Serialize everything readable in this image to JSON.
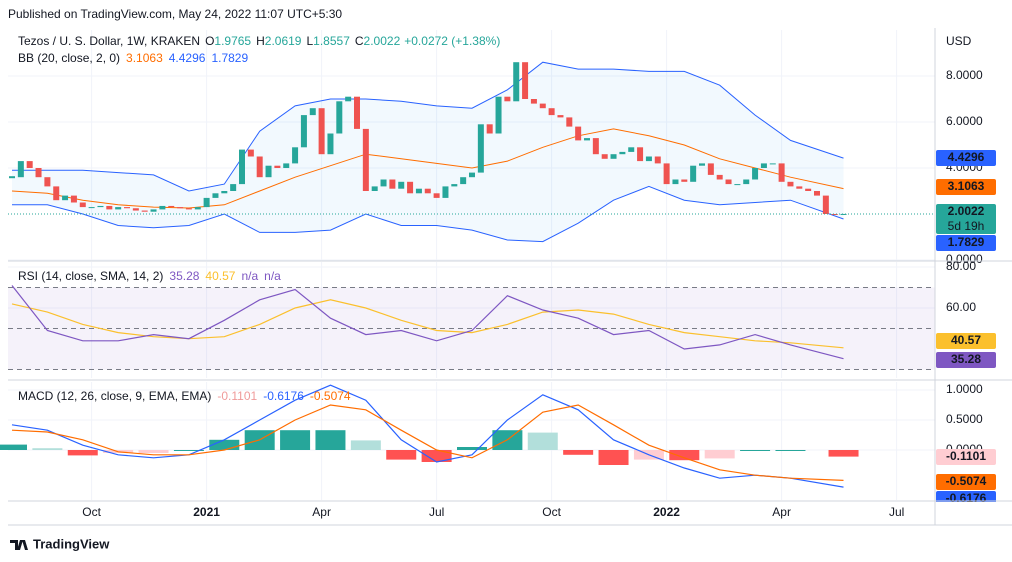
{
  "header": {
    "published": "Published on TradingView.com, May 24, 2022 11:07 UTC+5:30",
    "brand": "TradingView"
  },
  "chart_data": [
    {
      "type": "candlestick",
      "title": "Tezos / U. S. Dollar, 1W, KRAKEN",
      "unit": "USD",
      "ohlc": [
        {
          "label": "O",
          "value": 1.9765
        },
        {
          "label": "H",
          "value": 2.0619
        },
        {
          "label": "L",
          "value": 1.8557
        },
        {
          "label": "C",
          "value": 2.0022
        }
      ],
      "change": "+0.0272 (+1.38%)",
      "countdown": "5d 19h",
      "up_color": "#26a69a",
      "down_color": "#ef5350",
      "closes": [
        3.6,
        4.3,
        4.0,
        3.6,
        3.2,
        2.6,
        2.8,
        2.5,
        2.3,
        2.3,
        2.35,
        2.2,
        2.3,
        2.25,
        2.15,
        2.1,
        2.2,
        2.35,
        2.3,
        2.25,
        2.2,
        2.3,
        2.7,
        2.9,
        3.0,
        3.3,
        4.8,
        4.5,
        3.6,
        4.1,
        4.0,
        4.2,
        4.9,
        6.3,
        6.6,
        4.6,
        5.5,
        6.9,
        7.1,
        5.7,
        3.0,
        3.2,
        3.5,
        3.1,
        3.4,
        2.9,
        3.1,
        2.9,
        2.7,
        3.2,
        3.3,
        3.6,
        3.8,
        5.9,
        5.5,
        7.1,
        6.9,
        8.6,
        7.0,
        6.8,
        6.6,
        6.3,
        6.2,
        5.8,
        5.2,
        5.3,
        4.6,
        4.4,
        4.6,
        4.7,
        4.9,
        4.3,
        4.5,
        4.2,
        3.3,
        3.5,
        3.4,
        4.1,
        4.2,
        3.7,
        3.5,
        3.3,
        3.3,
        3.5,
        4.0,
        4.2,
        4.2,
        3.4,
        3.2,
        3.1,
        3.0,
        2.8,
        2.0,
        1.9765,
        2.0022
      ],
      "bb": {
        "label": "BB (20, close, 2, 0)",
        "x": [
          0,
          4,
          8,
          12,
          16,
          20,
          24,
          28,
          32,
          36,
          40,
          44,
          48,
          52,
          56,
          60,
          64,
          68,
          72,
          76,
          80,
          84,
          88,
          94
        ],
        "series": [
          {
            "color": "#ff6d00",
            "last": 3.1063,
            "values": [
              3.0,
              2.9,
              2.6,
              2.4,
              2.3,
              2.26,
              2.4,
              3.0,
              3.6,
              4.1,
              4.6,
              4.4,
              4.2,
              4.0,
              4.3,
              4.9,
              5.4,
              5.7,
              5.4,
              5.0,
              4.4,
              4.0,
              3.6,
              3.1063
            ]
          },
          {
            "color": "#2962ff",
            "last": 4.4296,
            "values": [
              3.9,
              3.9,
              3.9,
              3.8,
              3.7,
              3.0,
              3.3,
              5.6,
              6.7,
              7.0,
              7.0,
              6.9,
              6.7,
              6.6,
              7.4,
              8.6,
              8.3,
              8.3,
              8.2,
              8.2,
              7.6,
              6.3,
              5.2,
              4.4296
            ]
          },
          {
            "color": "#2962ff",
            "last": 1.7829,
            "values": [
              2.4,
              2.4,
              2.0,
              1.5,
              1.4,
              1.5,
              2.0,
              1.2,
              1.2,
              1.3,
              2.0,
              1.5,
              1.5,
              1.3,
              0.87,
              0.8,
              1.6,
              2.6,
              3.2,
              2.6,
              2.4,
              2.5,
              2.6,
              1.7829
            ]
          }
        ]
      },
      "xlim": [
        0,
        104
      ],
      "xticks": [
        {
          "value": 9,
          "label": "Oct"
        },
        {
          "value": 22,
          "label": "2021"
        },
        {
          "value": 35,
          "label": "Apr"
        },
        {
          "value": 48,
          "label": "Jul"
        },
        {
          "value": 61,
          "label": "Oct"
        },
        {
          "value": 74,
          "label": "2022"
        },
        {
          "value": 87,
          "label": "Apr"
        },
        {
          "value": 100,
          "label": "Jul"
        }
      ],
      "ylim": [
        0,
        10
      ],
      "yticks": [
        {
          "value": 0,
          "label": "0.0000"
        },
        {
          "value": 4,
          "label": "4.0000"
        },
        {
          "value": 6,
          "label": "6.0000"
        },
        {
          "value": 8,
          "label": "8.0000"
        }
      ]
    },
    {
      "type": "line",
      "title": "RSI (14, close, SMA, 14, 2)",
      "x": [
        0,
        4,
        8,
        12,
        16,
        20,
        24,
        28,
        32,
        36,
        40,
        44,
        48,
        52,
        56,
        60,
        64,
        68,
        72,
        76,
        80,
        84,
        88,
        94
      ],
      "series": [
        {
          "color": "#7e57c2",
          "last": 35.28,
          "values": [
            71,
            49,
            44,
            44,
            47,
            45,
            54,
            64,
            69,
            55,
            47,
            49,
            44,
            49,
            66,
            59,
            55,
            47,
            49,
            40,
            42,
            47,
            42,
            35.28
          ]
        },
        {
          "color": "#fbc02d",
          "last": 40.57,
          "values": [
            62,
            58,
            52,
            48,
            46,
            45,
            46,
            52,
            60,
            64,
            60,
            54,
            49,
            48,
            52,
            58,
            59,
            57,
            52,
            48,
            46,
            44,
            43,
            40.57
          ]
        }
      ],
      "extra": [
        "n/a",
        "n/a"
      ],
      "bands": [
        30,
        70
      ],
      "midline": 50,
      "ylim": [
        25.85,
        82.44
      ],
      "yticks": [
        {
          "value": 80,
          "label": "80.00"
        },
        {
          "value": 60,
          "label": "60.00"
        }
      ]
    },
    {
      "type": "macd",
      "title": "MACD (12, 26, close, 9, EMA, EMA)",
      "x": [
        0,
        4,
        8,
        12,
        16,
        20,
        24,
        28,
        32,
        36,
        40,
        44,
        48,
        52,
        56,
        60,
        64,
        68,
        72,
        76,
        80,
        84,
        88,
        94
      ],
      "histogram": {
        "last": -0.1101,
        "values": [
          0.09,
          0.03,
          -0.09,
          -0.05,
          -0.05,
          0,
          0.17,
          0.33,
          0.33,
          0.33,
          0.16,
          -0.16,
          -0.2,
          0.05,
          0.33,
          0.29,
          -0.08,
          -0.25,
          -0.16,
          -0.17,
          -0.14,
          0,
          0,
          -0.1101
        ]
      },
      "series": [
        {
          "color": "#2962ff",
          "last": -0.6176,
          "values": [
            0.42,
            0.33,
            0.08,
            -0.08,
            -0.13,
            -0.08,
            0.17,
            0.5,
            0.83,
            1.08,
            0.83,
            0.17,
            -0.2,
            -0.08,
            0.5,
            0.92,
            0.67,
            0.17,
            -0.08,
            -0.3,
            -0.47,
            -0.42,
            -0.47,
            -0.6176
          ]
        },
        {
          "color": "#ff6d00",
          "last": -0.5074,
          "values": [
            0.33,
            0.3,
            0.17,
            -0.03,
            -0.08,
            -0.08,
            0,
            0.17,
            0.5,
            0.75,
            0.67,
            0.33,
            0,
            -0.13,
            0.17,
            0.63,
            0.75,
            0.42,
            0.08,
            -0.13,
            -0.33,
            -0.42,
            -0.47,
            -0.5074
          ]
        }
      ],
      "ylim": [
        -0.8333,
        1.1333
      ],
      "yticks": [
        {
          "value": 1,
          "label": "1.0000"
        },
        {
          "value": 0.5,
          "label": "0.5000"
        },
        {
          "value": 0,
          "label": "0.0000"
        }
      ]
    }
  ]
}
